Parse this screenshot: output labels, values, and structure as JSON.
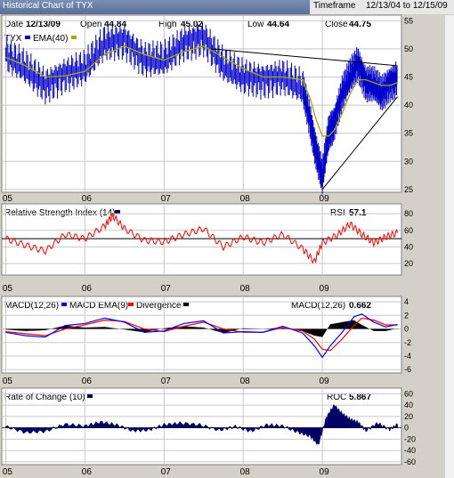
{
  "window": {
    "title": "Historical Chart of TYX",
    "timeframe_label": "Timeframe",
    "timeframe_value": "12/13/04 to 12/15/09"
  },
  "quote": {
    "date_label": "Date",
    "date": "12/13/09",
    "open_label": "Open",
    "open": "44.84",
    "high_label": "High",
    "high": "45.02",
    "low_label": "Low",
    "low": "44.64",
    "close_label": "Close",
    "close": "44.75"
  },
  "colors": {
    "price": "#0000cc",
    "ema": "#a8a800",
    "rsi": "#ff0000",
    "macd": "#0000ff",
    "signal": "#ff0000",
    "histogram": "#000000",
    "roc": "#000066",
    "trend": "#000000"
  },
  "chart_data": [
    {
      "type": "line",
      "legend": [
        "TYX",
        "EMA(40)"
      ],
      "x_ticks": [
        "05",
        "06",
        "07",
        "08",
        "09"
      ],
      "y_ticks": [
        25,
        30,
        35,
        40,
        45,
        50,
        55
      ],
      "ylim": [
        24.5,
        56
      ],
      "x": [
        2005.0,
        2005.25,
        2005.5,
        2005.75,
        2006.0,
        2006.25,
        2006.5,
        2006.75,
        2007.0,
        2007.25,
        2007.5,
        2007.75,
        2008.0,
        2008.25,
        2008.5,
        2008.75,
        2008.85,
        2008.92,
        2009.0,
        2009.08,
        2009.15,
        2009.25,
        2009.35,
        2009.45,
        2009.55,
        2009.65,
        2009.75,
        2009.85,
        2009.95
      ],
      "series": [
        {
          "name": "TYX",
          "values": [
            49.0,
            46.5,
            43.5,
            45.5,
            46.5,
            51.0,
            51.5,
            48.0,
            48.0,
            51.0,
            52.0,
            47.0,
            45.0,
            44.5,
            45.0,
            43.0,
            37.0,
            32.0,
            27.0,
            35.0,
            37.0,
            42.0,
            45.0,
            47.5,
            44.0,
            43.5,
            42.0,
            44.0,
            44.75
          ]
        },
        {
          "name": "EMA(40)",
          "values": [
            48.5,
            47.0,
            45.0,
            45.2,
            46.0,
            49.0,
            50.5,
            49.0,
            48.0,
            49.5,
            50.5,
            48.5,
            46.5,
            45.0,
            45.0,
            44.5,
            41.0,
            37.5,
            34.5,
            34.5,
            35.5,
            38.5,
            42.0,
            44.5,
            44.5,
            44.0,
            43.5,
            43.5,
            44.0
          ]
        }
      ],
      "trendlines": [
        {
          "from": [
            2007.6,
            50.0
          ],
          "to": [
            2009.95,
            47.0
          ]
        },
        {
          "from": [
            2009.0,
            25.0
          ],
          "to": [
            2009.95,
            41.5
          ]
        }
      ]
    },
    {
      "type": "line",
      "title": "Relative Strength Index (14)",
      "value_label": "RSI",
      "value": "57.1",
      "x_ticks": [
        "05",
        "06",
        "07",
        "08",
        "09"
      ],
      "y_ticks": [
        20,
        40,
        60,
        80
      ],
      "ylim": [
        6,
        92
      ],
      "reference_line": 50,
      "x": [
        2005.0,
        2005.25,
        2005.5,
        2005.75,
        2006.0,
        2006.25,
        2006.35,
        2006.5,
        2006.75,
        2007.0,
        2007.25,
        2007.5,
        2007.75,
        2008.0,
        2008.25,
        2008.5,
        2008.75,
        2008.9,
        2009.0,
        2009.2,
        2009.35,
        2009.5,
        2009.65,
        2009.8,
        2009.95
      ],
      "values": [
        50,
        42,
        35,
        55,
        50,
        65,
        78,
        62,
        48,
        46,
        55,
        62,
        40,
        52,
        45,
        55,
        38,
        22,
        45,
        55,
        68,
        55,
        45,
        52,
        57.1
      ]
    },
    {
      "type": "line",
      "title": "MACD(12,26)",
      "legend": [
        "MACD EMA(9)",
        "Divergence"
      ],
      "value_label": "MACD(12,26)",
      "value": "0.662",
      "x_ticks": [
        "05",
        "06",
        "07",
        "08",
        "09"
      ],
      "y_ticks": [
        -6,
        -4,
        -2,
        0,
        2,
        4
      ],
      "ylim": [
        -6.5,
        4.8
      ],
      "x": [
        2005.0,
        2005.25,
        2005.5,
        2005.75,
        2006.0,
        2006.25,
        2006.5,
        2006.75,
        2007.0,
        2007.25,
        2007.5,
        2007.75,
        2008.0,
        2008.25,
        2008.5,
        2008.75,
        2008.9,
        2009.0,
        2009.1,
        2009.25,
        2009.4,
        2009.5,
        2009.65,
        2009.8,
        2009.95
      ],
      "series": [
        {
          "name": "MACD",
          "values": [
            -0.5,
            -1.0,
            -1.2,
            0.5,
            0.8,
            1.6,
            1.0,
            -0.5,
            -0.3,
            0.8,
            1.2,
            -0.6,
            -0.4,
            -0.5,
            0.4,
            -0.6,
            -2.5,
            -4.2,
            -2.5,
            -0.5,
            1.8,
            2.2,
            1.0,
            0.3,
            0.662
          ]
        },
        {
          "name": "MACD EMA(9)",
          "values": [
            -0.4,
            -0.7,
            -1.0,
            0.0,
            0.6,
            1.3,
            1.1,
            0.0,
            -0.4,
            0.4,
            1.0,
            0.0,
            -0.5,
            -0.5,
            0.2,
            -0.3,
            -1.5,
            -3.0,
            -3.2,
            -1.5,
            0.5,
            1.6,
            1.3,
            0.6,
            0.6
          ]
        }
      ]
    },
    {
      "type": "area",
      "title": "Rate of Change (10)",
      "value_label": "ROC",
      "value": "5.867",
      "x_ticks": [
        "05",
        "06",
        "07",
        "08",
        "09"
      ],
      "y_ticks": [
        -60,
        -40,
        -20,
        0,
        20,
        40,
        60
      ],
      "ylim": [
        -65,
        70
      ],
      "x": [
        2005.0,
        2005.25,
        2005.5,
        2005.75,
        2006.0,
        2006.2,
        2006.4,
        2006.6,
        2006.8,
        2007.0,
        2007.2,
        2007.45,
        2007.7,
        2007.9,
        2008.1,
        2008.3,
        2008.5,
        2008.7,
        2008.85,
        2008.95,
        2009.05,
        2009.15,
        2009.25,
        2009.35,
        2009.45,
        2009.55,
        2009.7,
        2009.85,
        2009.95
      ],
      "values": [
        2,
        -8,
        -6,
        6,
        3,
        10,
        5,
        -5,
        -4,
        5,
        8,
        5,
        -4,
        2,
        -6,
        5,
        3,
        -8,
        -15,
        -30,
        18,
        40,
        25,
        15,
        10,
        -5,
        8,
        -3,
        5.867
      ]
    }
  ]
}
